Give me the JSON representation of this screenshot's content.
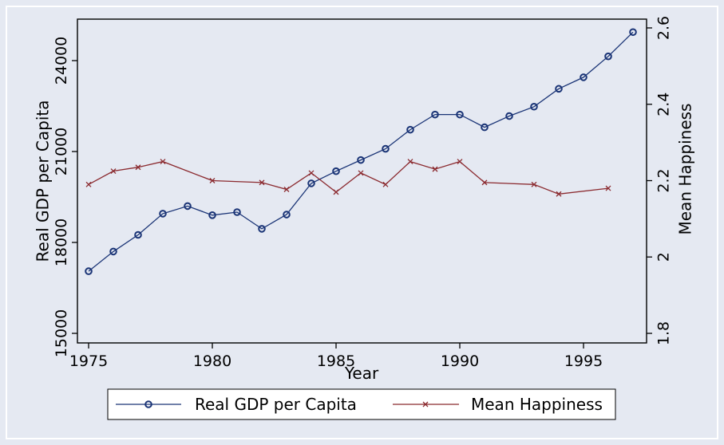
{
  "chart_data": {
    "type": "line",
    "title": "",
    "xlabel": "Year",
    "ylabel_left": "Real GDP per Capita",
    "ylabel_right": "Mean Happiness",
    "xlim": [
      1975,
      1997
    ],
    "ylim_left": [
      15000,
      25000
    ],
    "ylim_right": [
      1.8,
      2.6
    ],
    "x_ticks": [
      1975,
      1980,
      1985,
      1990,
      1995
    ],
    "y_left_ticks": [
      15000,
      18000,
      21000,
      24000
    ],
    "y_right_ticks": [
      1.8,
      2,
      2.2,
      2.4,
      2.6
    ],
    "grid": false,
    "legend_position": "bottom",
    "background": "#e5e9f2",
    "series": [
      {
        "name": "Real GDP per Capita",
        "axis": "left",
        "marker": "circle",
        "color": "#1a3476",
        "x": [
          1975,
          1976,
          1977,
          1978,
          1979,
          1980,
          1981,
          1982,
          1983,
          1984,
          1985,
          1986,
          1987,
          1988,
          1989,
          1990,
          1991,
          1992,
          1993,
          1994,
          1995,
          1996,
          1997
        ],
        "values": [
          17050,
          17700,
          18250,
          18950,
          19200,
          18900,
          19000,
          18450,
          18920,
          19950,
          20350,
          20720,
          21090,
          21720,
          22220,
          22220,
          21800,
          22170,
          22480,
          23070,
          23450,
          24140,
          24940
        ]
      },
      {
        "name": "Mean Happiness",
        "axis": "right",
        "marker": "x",
        "color": "#8b2a2f",
        "x": [
          1975,
          1976,
          1977,
          1978,
          1980,
          1982,
          1983,
          1984,
          1985,
          1986,
          1987,
          1988,
          1989,
          1990,
          1991,
          1993,
          1994,
          1996
        ],
        "values": [
          2.19,
          2.225,
          2.235,
          2.25,
          2.2,
          2.195,
          2.177,
          2.22,
          2.17,
          2.22,
          2.19,
          2.25,
          2.23,
          2.25,
          2.195,
          2.19,
          2.165,
          2.18
        ]
      }
    ]
  }
}
